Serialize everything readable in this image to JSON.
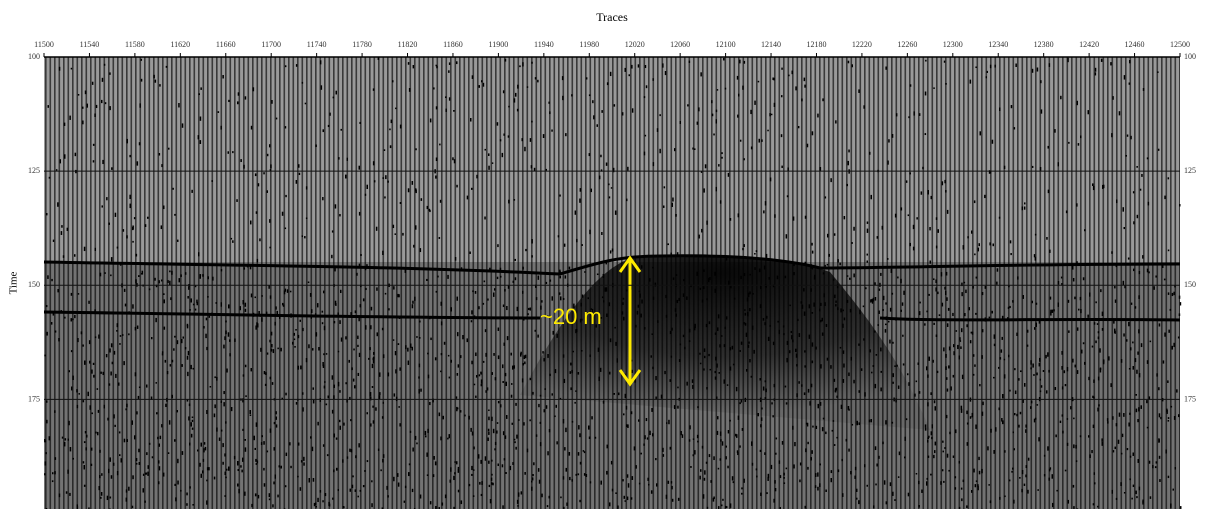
{
  "chart_data": {
    "type": "seismic-section",
    "title": "Traces",
    "y_label": "Time",
    "annotation": "~20 m",
    "xlim": [
      11500,
      12500
    ],
    "xticks": [
      11500,
      11540,
      11580,
      11620,
      11660,
      11700,
      11740,
      11780,
      11820,
      11860,
      11900,
      11940,
      11980,
      12020,
      12060,
      12100,
      12140,
      12180,
      12220,
      12260,
      12300,
      12340,
      12380,
      12420,
      12460,
      12500
    ],
    "ylim": [
      100,
      199
    ],
    "yticks": [
      100,
      125,
      150,
      175
    ],
    "grid": true
  }
}
